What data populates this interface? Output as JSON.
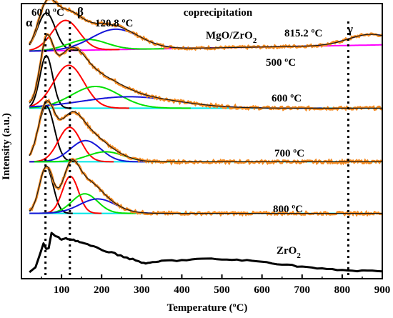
{
  "chart_data": {
    "type": "line",
    "title": "coprecipitation",
    "xlabel": "Temperature (ºC)",
    "ylabel": "Intensity (a.u.)",
    "xlim": [
      0,
      900
    ],
    "x_ticks": [
      "100",
      "200",
      "300",
      "400",
      "500",
      "600",
      "700",
      "800",
      "900"
    ],
    "y_ticks_visible": false,
    "grid": false,
    "sample_labels": [
      "MgO/ZrO",
      "500 ºC",
      "600 ºC",
      "700 ºC",
      "800 ºC",
      "ZrO"
    ],
    "sample_label_subscript": "2",
    "annotations": {
      "peak_alpha_temp": "60.0 ºC",
      "peak_beta_temp": "120.8 ºC",
      "peak_gamma_temp": "815.2 ºC",
      "alpha": "α",
      "beta": "β",
      "gamma": "γ"
    },
    "reference_lines_x": [
      60,
      120.8,
      815.2
    ],
    "colors": {
      "experimental": "#f58a1f",
      "fit_envelope": "#1a1a1a",
      "alpha_component": "#000000",
      "beta_component": "#ff0000",
      "green_component": "#00e000",
      "blue_component": "#1515d8",
      "baseline_500": "#ff00ff",
      "baseline_other": "#00e6e6",
      "zro2_curve": "#000000"
    },
    "series": [
      {
        "baseline_color_key": "baseline_500",
        "components": [
          {
            "color_key": "alpha_component",
            "center": 62,
            "height": 0.78,
            "width": 22
          },
          {
            "color_key": "beta_component",
            "center": 110,
            "height": 0.62,
            "width": 34
          },
          {
            "color_key": "green_component",
            "center": 165,
            "height": 0.22,
            "width": 48
          },
          {
            "color_key": "blue_component",
            "center": 235,
            "height": 0.42,
            "width": 60
          },
          {
            "color_key": "blue_component",
            "center": 870,
            "height": 0.22,
            "width": 55
          }
        ],
        "baseline": [
          0.05,
          0.18
        ]
      },
      {
        "baseline_color_key": "baseline_other",
        "components": [
          {
            "color_key": "alpha_component",
            "center": 62,
            "height": 0.92,
            "width": 16
          },
          {
            "color_key": "beta_component",
            "center": 118,
            "height": 0.75,
            "width": 38
          },
          {
            "color_key": "green_component",
            "center": 185,
            "height": 0.38,
            "width": 60
          },
          {
            "color_key": "blue_component",
            "center": 270,
            "height": 0.2,
            "width": 120
          }
        ],
        "baseline": [
          0.02,
          0.02
        ]
      },
      {
        "baseline_color_key": "baseline_other",
        "components": [
          {
            "color_key": "alpha_component",
            "center": 62,
            "height": 1.0,
            "width": 20
          },
          {
            "color_key": "beta_component",
            "center": 120,
            "height": 0.62,
            "width": 28
          },
          {
            "color_key": "blue_component",
            "center": 160,
            "height": 0.38,
            "width": 38
          },
          {
            "color_key": "green_component",
            "center": 210,
            "height": 0.18,
            "width": 45
          }
        ],
        "baseline": [
          0.02,
          0.02
        ]
      },
      {
        "baseline_color_key": "baseline_other",
        "components": [
          {
            "color_key": "alpha_component",
            "center": 62,
            "height": 0.9,
            "width": 17
          },
          {
            "color_key": "beta_component",
            "center": 122,
            "height": 0.72,
            "width": 20
          },
          {
            "color_key": "green_component",
            "center": 158,
            "height": 0.38,
            "width": 32
          },
          {
            "color_key": "blue_component",
            "center": 190,
            "height": 0.28,
            "width": 45
          }
        ],
        "baseline": [
          0.02,
          0.02
        ]
      }
    ],
    "zro2_points": [
      [
        20,
        0.02
      ],
      [
        35,
        0.14
      ],
      [
        48,
        0.52
      ],
      [
        55,
        0.74
      ],
      [
        62,
        0.6
      ],
      [
        68,
        0.62
      ],
      [
        75,
        1.0
      ],
      [
        85,
        0.92
      ],
      [
        100,
        0.84
      ],
      [
        115,
        0.86
      ],
      [
        130,
        0.83
      ],
      [
        150,
        0.76
      ],
      [
        180,
        0.65
      ],
      [
        210,
        0.55
      ],
      [
        240,
        0.46
      ],
      [
        270,
        0.36
      ],
      [
        300,
        0.26
      ],
      [
        320,
        0.24
      ],
      [
        350,
        0.3
      ],
      [
        400,
        0.32
      ],
      [
        450,
        0.35
      ],
      [
        500,
        0.34
      ],
      [
        550,
        0.32
      ],
      [
        600,
        0.28
      ],
      [
        650,
        0.22
      ],
      [
        700,
        0.16
      ],
      [
        750,
        0.1
      ],
      [
        800,
        0.07
      ],
      [
        850,
        0.05
      ],
      [
        900,
        0.04
      ]
    ]
  }
}
